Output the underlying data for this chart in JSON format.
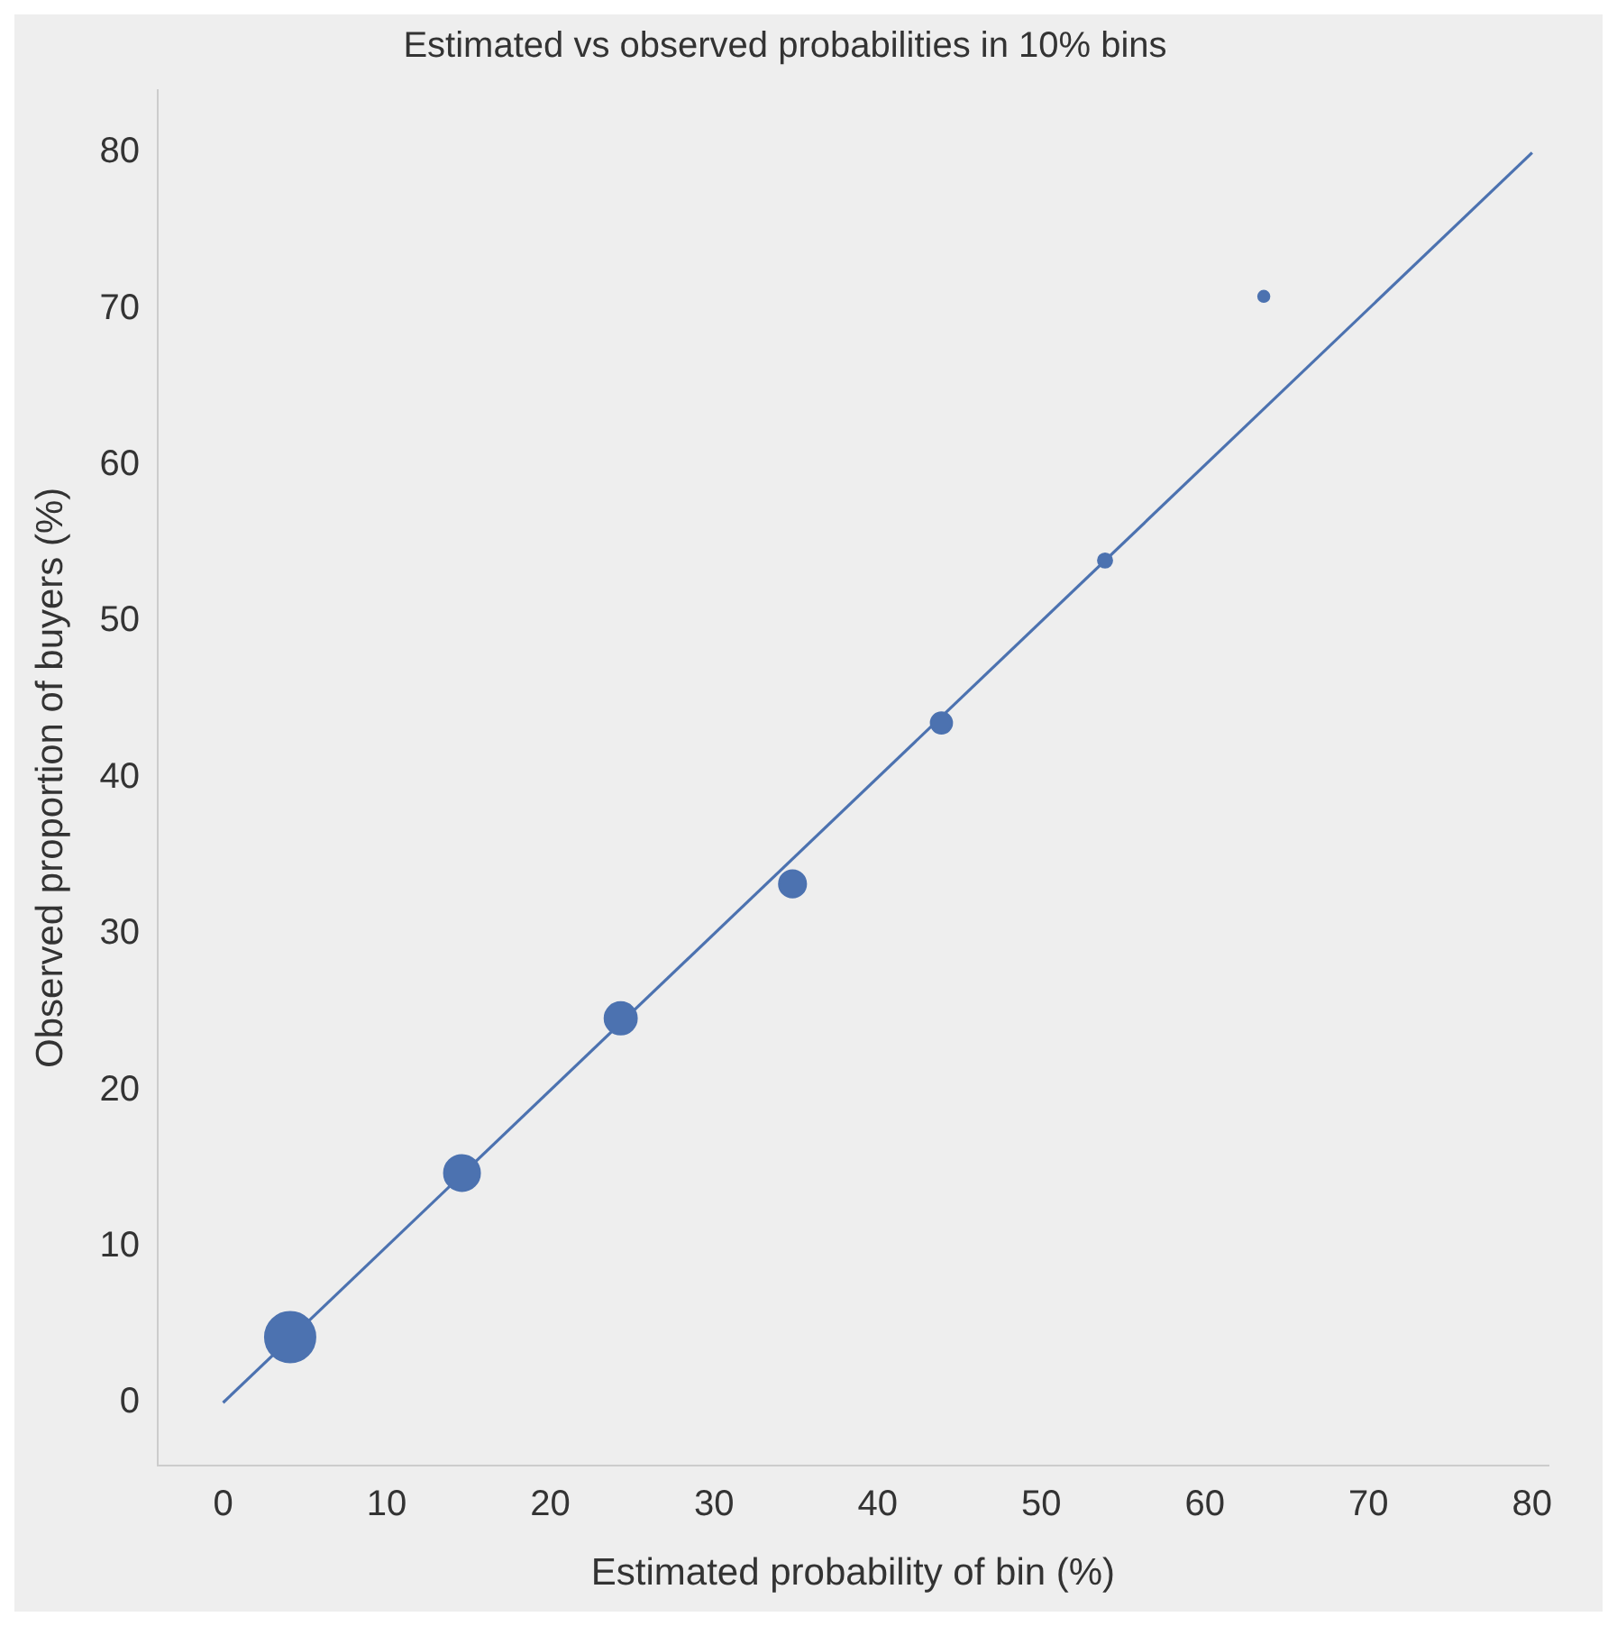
{
  "chart_data": {
    "type": "bubble",
    "title": "Estimated vs observed probabilities in 10% bins",
    "xlabel": "Estimated probability of bin (%)",
    "ylabel": "Observed proportion of buyers (%)",
    "xlim": [
      -4,
      81
    ],
    "ylim": [
      -4,
      84
    ],
    "xticks": [
      0,
      10,
      20,
      30,
      40,
      50,
      60,
      70,
      80
    ],
    "yticks": [
      0,
      10,
      20,
      30,
      40,
      50,
      60,
      70,
      80
    ],
    "grid": false,
    "legend": false,
    "series": [
      {
        "color": "#4c72b0",
        "marker": "circle",
        "x": [
          4.1,
          14.6,
          24.3,
          34.8,
          43.9,
          53.9,
          63.6
        ],
        "values": [
          4.2,
          14.7,
          24.6,
          33.2,
          43.5,
          53.9,
          70.8
        ],
        "sizes": [
          1,
          0.51,
          0.41,
          0.29,
          0.18,
          0.08,
          0.05
        ]
      },
      {
        "type": "line",
        "color": "#4c72b0",
        "line_style": "solid",
        "marker": "none",
        "x": [
          0,
          80
        ],
        "values": [
          0,
          80
        ]
      }
    ]
  }
}
